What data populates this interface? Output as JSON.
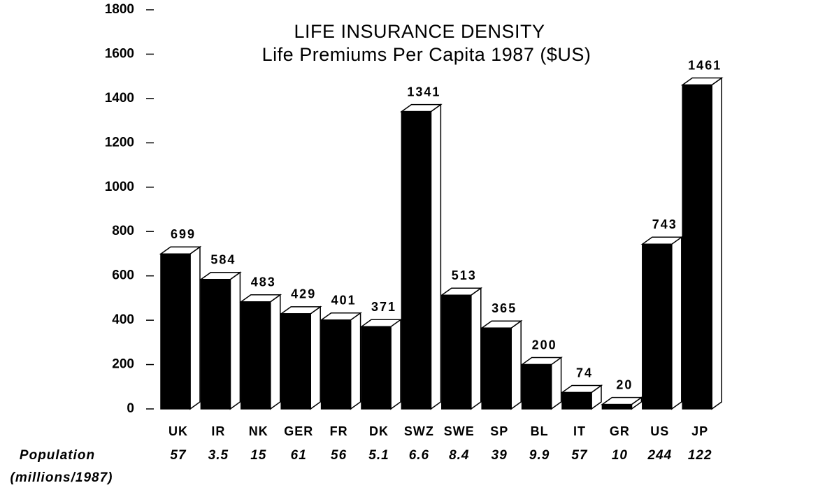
{
  "chart_data": {
    "type": "bar3d",
    "title": "LIFE INSURANCE DENSITY",
    "subtitle": "Life Premiums Per Capita 1987 ($US)",
    "categories": [
      "UK",
      "IR",
      "NK",
      "GER",
      "FR",
      "DK",
      "SWZ",
      "SWE",
      "SP",
      "BL",
      "IT",
      "GR",
      "US",
      "JP"
    ],
    "values": [
      699,
      584,
      483,
      429,
      401,
      371,
      1341,
      513,
      365,
      200,
      74,
      20,
      743,
      1461
    ],
    "color": "#000000",
    "population_label": "Population",
    "population_unit": "(millions/1987)",
    "population": [
      57,
      3.5,
      15,
      61,
      56,
      5.1,
      6.6,
      8.4,
      39,
      9.9,
      57,
      10,
      244,
      122
    ],
    "ylim": [
      0,
      1800
    ],
    "yticks": [
      0,
      200,
      400,
      600,
      800,
      1000,
      1200,
      1400,
      1600,
      1800
    ],
    "grid": false
  }
}
